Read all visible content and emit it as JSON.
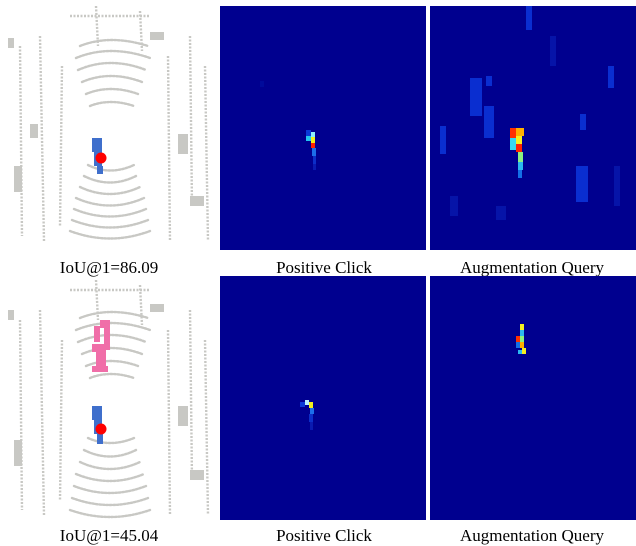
{
  "figure": {
    "rows": [
      {
        "iou_caption": "IoU@1=86.09",
        "click_caption": "Positive Click",
        "augment_caption": "Augmentation Query",
        "colors": {
          "heatmap_bg": "#00008f",
          "target_points": "#3f6fcc",
          "click_marker": "#ff0000"
        }
      },
      {
        "iou_caption": "IoU@1=45.04",
        "click_caption": "Positive Click",
        "augment_caption": "Augmentation Query",
        "colors": {
          "heatmap_bg": "#00008f",
          "target_points": "#3f6fcc",
          "false_points": "#f06ea8",
          "click_marker": "#ff0000"
        }
      }
    ]
  }
}
